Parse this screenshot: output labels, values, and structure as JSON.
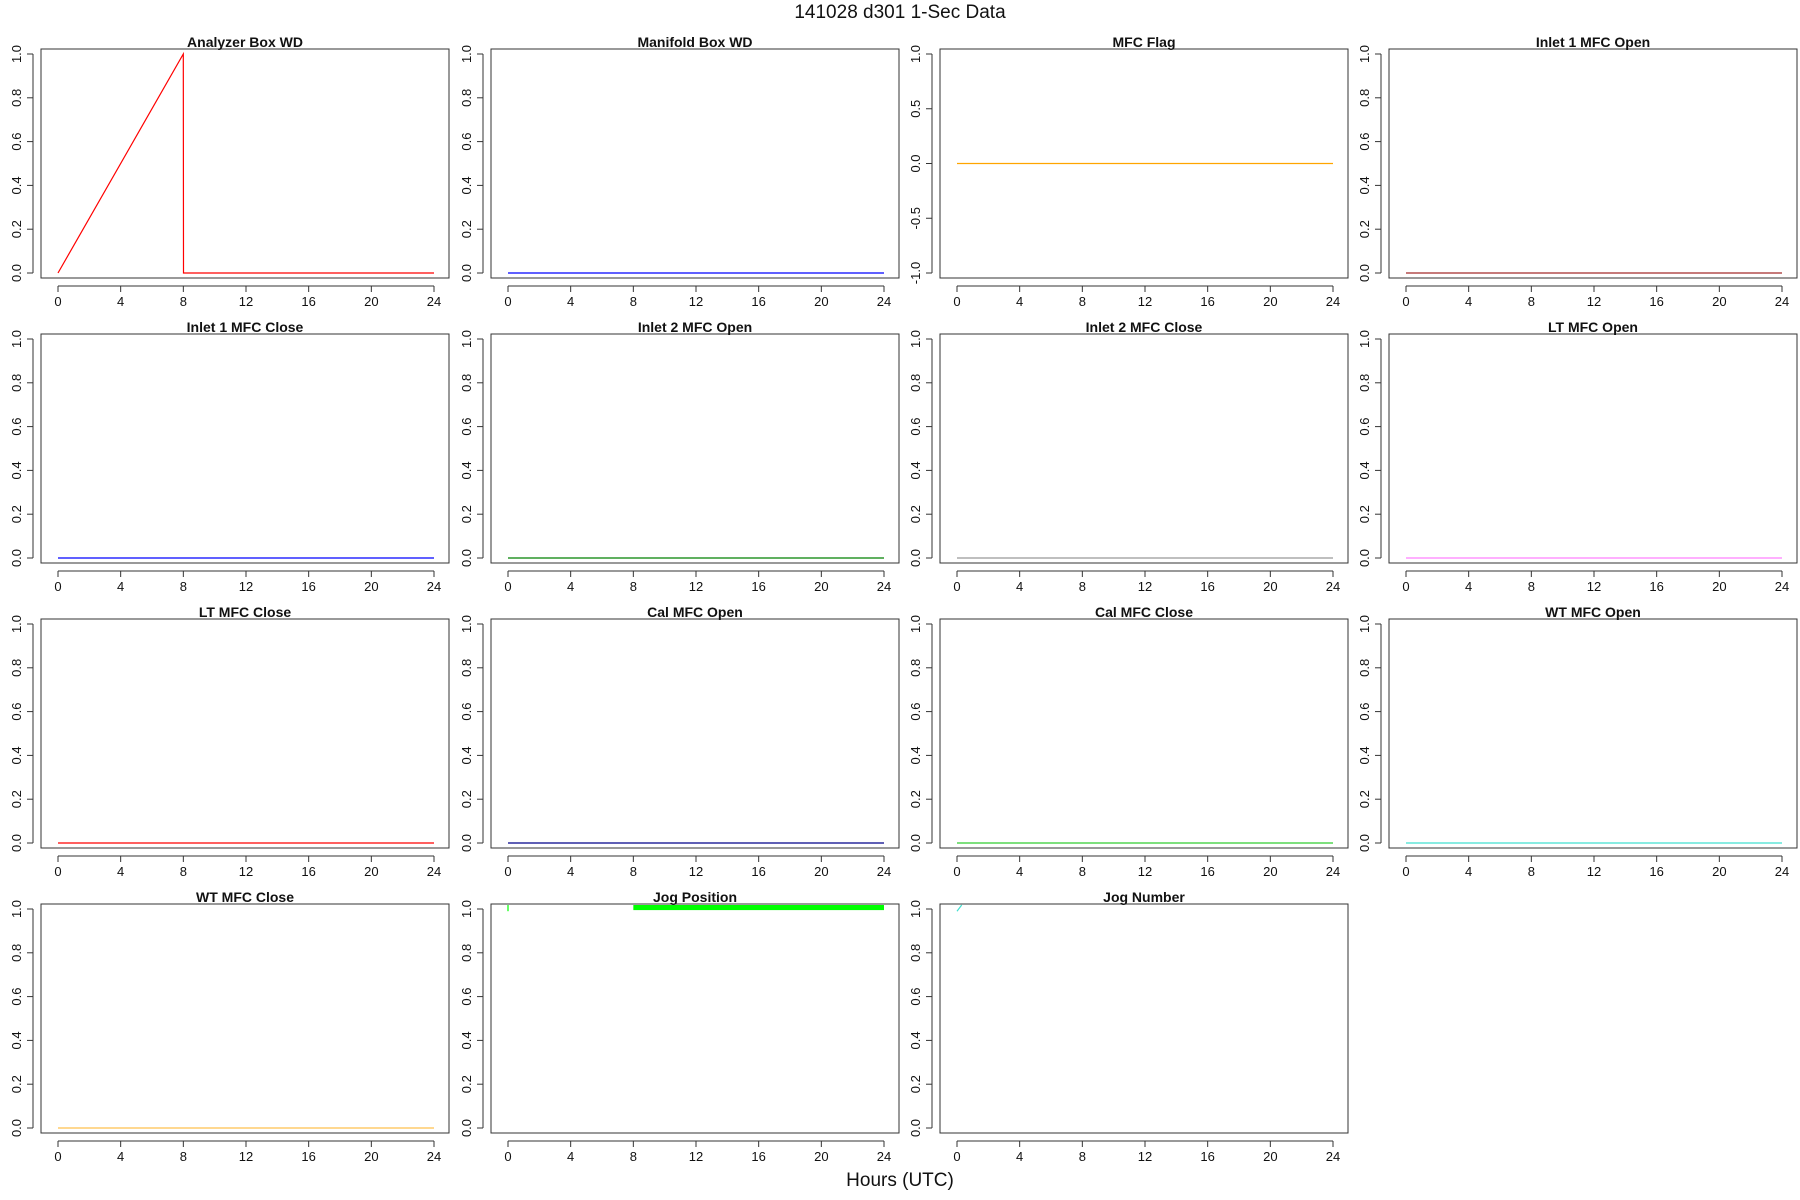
{
  "title": "141028   d301   1-Sec Data",
  "xlabel": "Hours (UTC)",
  "chart_data": [
    {
      "type": "line",
      "title": "Analyzer Box WD",
      "color": "#ff0000",
      "xlim": [
        0,
        24
      ],
      "ylim": [
        0,
        1
      ],
      "yticks": [
        "0.0",
        "0.2",
        "0.4",
        "0.6",
        "0.8",
        "1.0"
      ],
      "xticks": [
        "0",
        "4",
        "8",
        "12",
        "16",
        "20",
        "24"
      ],
      "series": [
        {
          "x": [
            0,
            8,
            8.01,
            24
          ],
          "y": [
            0,
            1,
            0,
            0
          ]
        }
      ]
    },
    {
      "type": "line",
      "title": "Manifold Box WD",
      "color": "#0000ff",
      "xlim": [
        0,
        24
      ],
      "ylim": [
        0,
        1
      ],
      "yticks": [
        "0.0",
        "0.2",
        "0.4",
        "0.6",
        "0.8",
        "1.0"
      ],
      "xticks": [
        "0",
        "4",
        "8",
        "12",
        "16",
        "20",
        "24"
      ],
      "series": [
        {
          "x": [
            0,
            24
          ],
          "y": [
            0,
            0
          ]
        }
      ]
    },
    {
      "type": "line",
      "title": "MFC Flag",
      "color": "#ffa500",
      "xlim": [
        0,
        24
      ],
      "ylim": [
        -1,
        1
      ],
      "yticks": [
        "-1.0",
        "-0.5",
        "0.0",
        "0.5",
        "1.0"
      ],
      "xticks": [
        "0",
        "4",
        "8",
        "12",
        "16",
        "20",
        "24"
      ],
      "series": [
        {
          "x": [
            0,
            24
          ],
          "y": [
            0,
            0
          ]
        }
      ]
    },
    {
      "type": "line",
      "title": "Inlet 1 MFC Open",
      "color": "#a52a2a",
      "xlim": [
        0,
        24
      ],
      "ylim": [
        0,
        1
      ],
      "yticks": [
        "0.0",
        "0.2",
        "0.4",
        "0.6",
        "0.8",
        "1.0"
      ],
      "xticks": [
        "0",
        "4",
        "8",
        "12",
        "16",
        "20",
        "24"
      ],
      "series": [
        {
          "x": [
            0,
            24
          ],
          "y": [
            0,
            0
          ]
        }
      ]
    },
    {
      "type": "line",
      "title": "Inlet 1 MFC Close",
      "color": "#0000ff",
      "xlim": [
        0,
        24
      ],
      "ylim": [
        0,
        1
      ],
      "yticks": [
        "0.0",
        "0.2",
        "0.4",
        "0.6",
        "0.8",
        "1.0"
      ],
      "xticks": [
        "0",
        "4",
        "8",
        "12",
        "16",
        "20",
        "24"
      ],
      "series": [
        {
          "x": [
            0,
            24
          ],
          "y": [
            0,
            0
          ]
        }
      ]
    },
    {
      "type": "line",
      "title": "Inlet 2 MFC Open",
      "color": "#008000",
      "xlim": [
        0,
        24
      ],
      "ylim": [
        0,
        1
      ],
      "yticks": [
        "0.0",
        "0.2",
        "0.4",
        "0.6",
        "0.8",
        "1.0"
      ],
      "xticks": [
        "0",
        "4",
        "8",
        "12",
        "16",
        "20",
        "24"
      ],
      "series": [
        {
          "x": [
            0,
            24
          ],
          "y": [
            0,
            0
          ]
        }
      ]
    },
    {
      "type": "line",
      "title": "Inlet 2 MFC Close",
      "color": "#999999",
      "xlim": [
        0,
        24
      ],
      "ylim": [
        0,
        1
      ],
      "yticks": [
        "0.0",
        "0.2",
        "0.4",
        "0.6",
        "0.8",
        "1.0"
      ],
      "xticks": [
        "0",
        "4",
        "8",
        "12",
        "16",
        "20",
        "24"
      ],
      "series": [
        {
          "x": [
            0,
            24
          ],
          "y": [
            0,
            0
          ]
        }
      ]
    },
    {
      "type": "line",
      "title": "LT MFC Open",
      "color": "#ff80ff",
      "xlim": [
        0,
        24
      ],
      "ylim": [
        0,
        1
      ],
      "yticks": [
        "0.0",
        "0.2",
        "0.4",
        "0.6",
        "0.8",
        "1.0"
      ],
      "xticks": [
        "0",
        "4",
        "8",
        "12",
        "16",
        "20",
        "24"
      ],
      "series": [
        {
          "x": [
            0,
            24
          ],
          "y": [
            0,
            0
          ]
        }
      ]
    },
    {
      "type": "line",
      "title": "LT MFC Close",
      "color": "#ff0000",
      "xlim": [
        0,
        24
      ],
      "ylim": [
        0,
        1
      ],
      "yticks": [
        "0.0",
        "0.2",
        "0.4",
        "0.6",
        "0.8",
        "1.0"
      ],
      "xticks": [
        "0",
        "4",
        "8",
        "12",
        "16",
        "20",
        "24"
      ],
      "series": [
        {
          "x": [
            0,
            24
          ],
          "y": [
            0,
            0
          ]
        }
      ]
    },
    {
      "type": "line",
      "title": "Cal MFC Open",
      "color": "#00008b",
      "xlim": [
        0,
        24
      ],
      "ylim": [
        0,
        1
      ],
      "yticks": [
        "0.0",
        "0.2",
        "0.4",
        "0.6",
        "0.8",
        "1.0"
      ],
      "xticks": [
        "0",
        "4",
        "8",
        "12",
        "16",
        "20",
        "24"
      ],
      "series": [
        {
          "x": [
            0,
            24
          ],
          "y": [
            0,
            0
          ]
        }
      ]
    },
    {
      "type": "line",
      "title": "Cal MFC Close",
      "color": "#32cd32",
      "xlim": [
        0,
        24
      ],
      "ylim": [
        0,
        1
      ],
      "yticks": [
        "0.0",
        "0.2",
        "0.4",
        "0.6",
        "0.8",
        "1.0"
      ],
      "xticks": [
        "0",
        "4",
        "8",
        "12",
        "16",
        "20",
        "24"
      ],
      "series": [
        {
          "x": [
            0,
            24
          ],
          "y": [
            0,
            0
          ]
        }
      ]
    },
    {
      "type": "line",
      "title": "WT MFC Open",
      "color": "#40e0d0",
      "xlim": [
        0,
        24
      ],
      "ylim": [
        0,
        1
      ],
      "yticks": [
        "0.0",
        "0.2",
        "0.4",
        "0.6",
        "0.8",
        "1.0"
      ],
      "xticks": [
        "0",
        "4",
        "8",
        "12",
        "16",
        "20",
        "24"
      ],
      "series": [
        {
          "x": [
            0,
            24
          ],
          "y": [
            0,
            0
          ]
        }
      ]
    },
    {
      "type": "line",
      "title": "WT MFC Close",
      "color": "#ffc04d",
      "xlim": [
        0,
        24
      ],
      "ylim": [
        0,
        1
      ],
      "yticks": [
        "0.0",
        "0.2",
        "0.4",
        "0.6",
        "0.8",
        "1.0"
      ],
      "xticks": [
        "0",
        "4",
        "8",
        "12",
        "16",
        "20",
        "24"
      ],
      "series": [
        {
          "x": [
            0,
            24
          ],
          "y": [
            0,
            0
          ]
        }
      ]
    },
    {
      "type": "area",
      "title": "Jog Position",
      "color": "#00ff00",
      "xlim": [
        0,
        24
      ],
      "ylim": [
        0,
        1
      ],
      "yticks": [
        "0.0",
        "0.2",
        "0.4",
        "0.6",
        "0.8",
        "1.0"
      ],
      "xticks": [
        "0",
        "4",
        "8",
        "12",
        "16",
        "20",
        "24"
      ],
      "series": [
        {
          "x": [
            0,
            0
          ],
          "y": [
            0.99,
            1.02
          ]
        }
      ],
      "bands": [
        {
          "x0": 8,
          "x1": 24,
          "y0": 0.995,
          "y1": 1.04
        }
      ]
    },
    {
      "type": "line",
      "title": "Jog Number",
      "color": "#40e0d0",
      "xlim": [
        0,
        24
      ],
      "ylim": [
        0,
        1
      ],
      "yticks": [
        "0.0",
        "0.2",
        "0.4",
        "0.6",
        "0.8",
        "1.0"
      ],
      "xticks": [
        "0",
        "4",
        "8",
        "12",
        "16",
        "20",
        "24"
      ],
      "series": [
        {
          "x": [
            0,
            0.3
          ],
          "y": [
            0.99,
            1.02
          ]
        }
      ]
    }
  ]
}
